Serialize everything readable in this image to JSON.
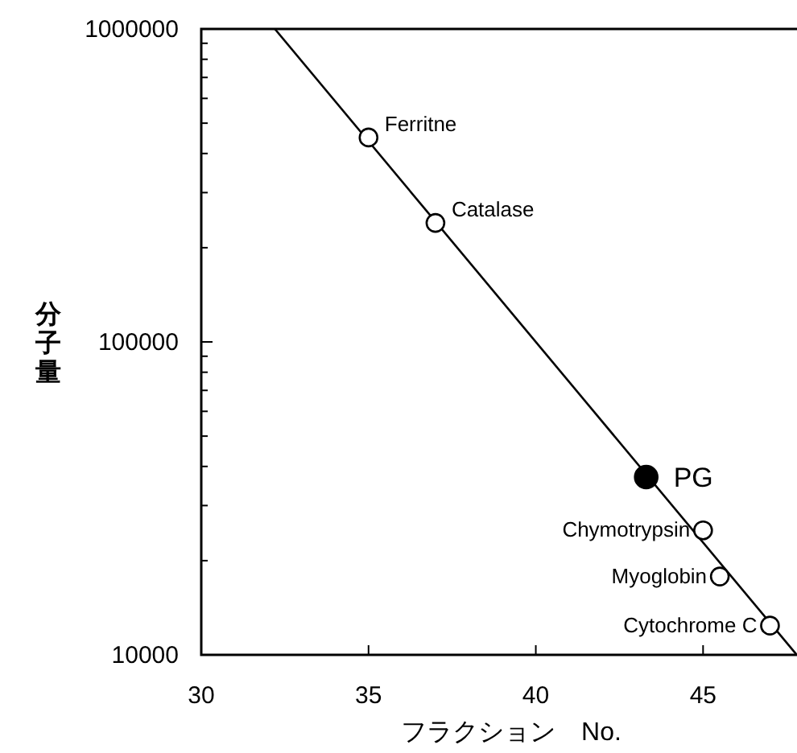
{
  "chart_data": {
    "type": "scatter",
    "xlabel": "フラクション　No.",
    "ylabel": "分子量",
    "log": "y",
    "grid": false,
    "marker": "circle",
    "xlim": [
      30,
      48
    ],
    "xticks": [
      30,
      35,
      40,
      45
    ],
    "ylim": [
      10000,
      1000000
    ],
    "yticks": [
      10000,
      {
        "value": 20000,
        "label": null
      },
      {
        "value": 30000,
        "label": null
      },
      {
        "value": 40000,
        "label": null
      },
      {
        "value": 50000,
        "label": null
      },
      {
        "value": 60000,
        "label": null
      },
      {
        "value": 70000,
        "label": null
      },
      {
        "value": 80000,
        "label": null
      },
      {
        "value": 90000,
        "label": null
      },
      100000,
      {
        "value": 200000,
        "label": null
      },
      {
        "value": 300000,
        "label": null
      },
      {
        "value": 400000,
        "label": null
      },
      {
        "value": 500000,
        "label": null
      },
      {
        "value": 600000,
        "label": null
      },
      {
        "value": 700000,
        "label": null
      },
      {
        "value": 800000,
        "label": null
      },
      {
        "value": 900000,
        "label": null
      },
      1000000
    ],
    "series": [
      {
        "type": "line",
        "color": "#000000",
        "marker": "none",
        "x": [
          32.2,
          47.8
        ],
        "values": [
          1000000,
          10000
        ]
      },
      {
        "color": "#000000",
        "x": [
          35,
          37,
          45,
          45.5,
          47
        ],
        "values": [
          450000,
          240000,
          25000,
          17800,
          12400
        ]
      },
      {
        "name": "PG",
        "color": "#000000",
        "x": [
          43.3
        ],
        "values": [
          37000
        ]
      }
    ],
    "annotations": [
      {
        "text": "Ferritne",
        "x": 35,
        "y": 450000
      },
      {
        "text": "Catalase",
        "x": 37,
        "y": 240000
      },
      {
        "text": "Chymotrypsin",
        "x": 45,
        "y": 25000
      },
      {
        "text": "Myoglobin",
        "x": 45.5,
        "y": 17800
      },
      {
        "text": "Cytochrome C",
        "x": 47,
        "y": 12400
      }
    ]
  }
}
